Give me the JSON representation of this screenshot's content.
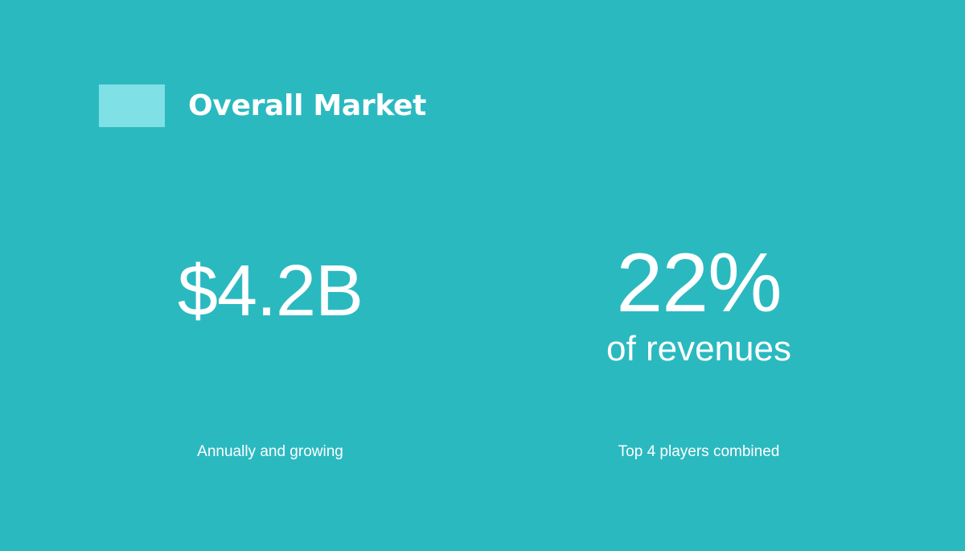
{
  "slide": {
    "title": "Overall Market",
    "stats": [
      {
        "value": "$4.2B",
        "caption": "Annually and growing"
      },
      {
        "value": "22%",
        "subvalue": "of revenues",
        "caption": "Top 4 players combined"
      }
    ]
  },
  "colors": {
    "background": "#2bb9c0",
    "accent": "#7fe0e6",
    "text": "#ffffff"
  }
}
